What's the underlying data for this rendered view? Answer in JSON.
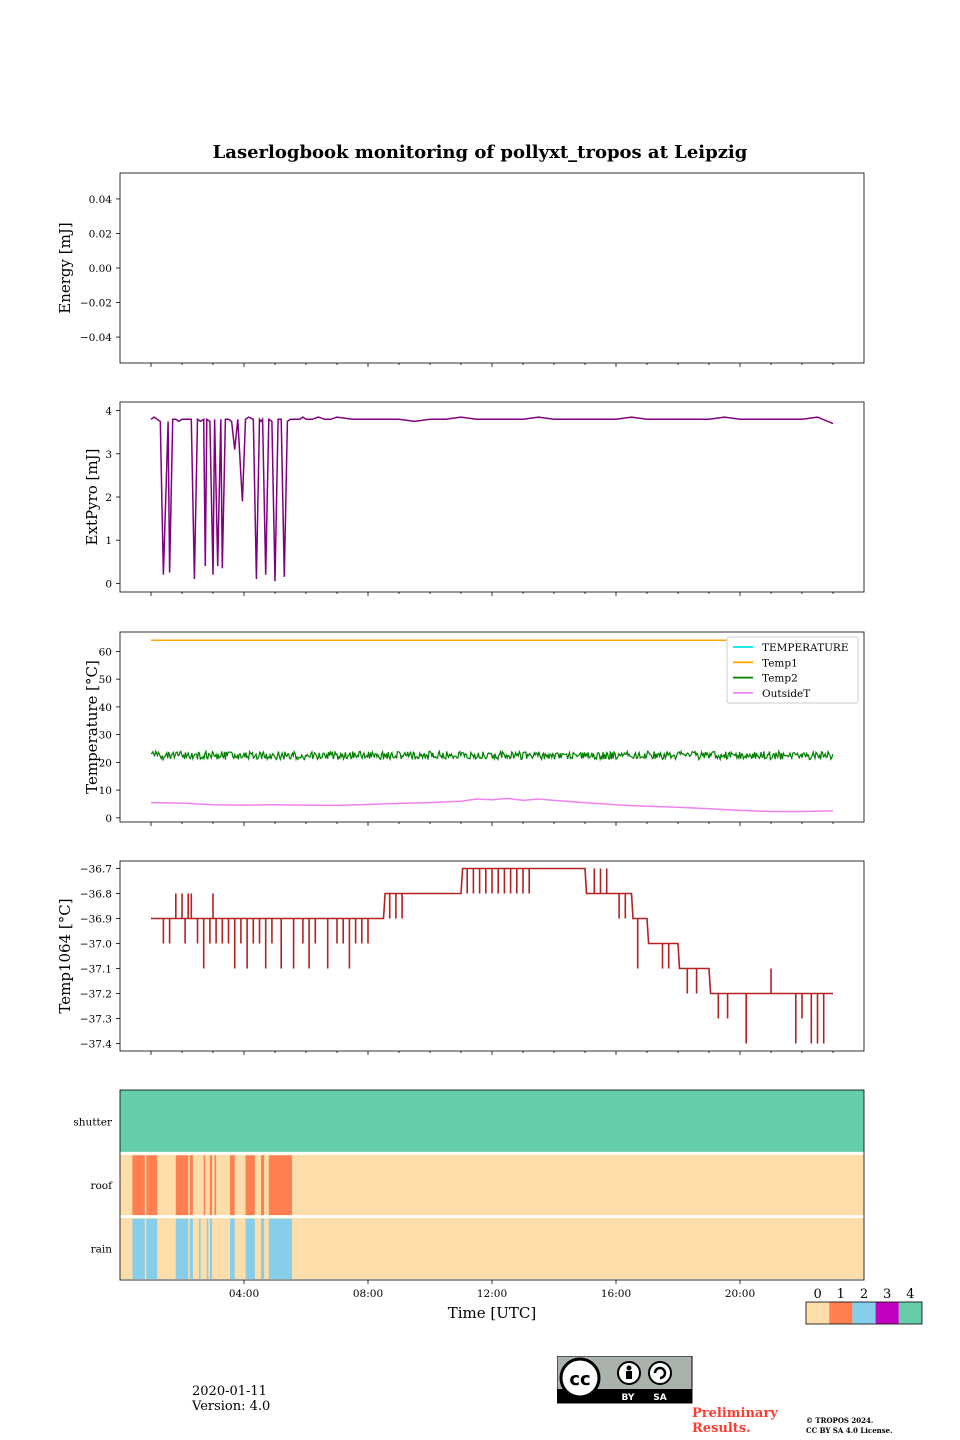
{
  "title": "Laserlogbook monitoring of pollyxt_tropos at Leipzig",
  "date": "2020-01-11",
  "version": "Version: 4.0",
  "preliminary": "Preliminary Results.",
  "copyright": "© TROPOS 2024.",
  "license": "CC BY SA 4.0 License.",
  "cc_badge": {
    "cc": "cc",
    "by": "BY",
    "sa": "SA"
  },
  "colors": {
    "energy": "#800080",
    "extpyro": "#800080",
    "temperature": "#00e5ee",
    "temp1": "#ffa500",
    "temp2": "#008000",
    "outside": "#ee82ee",
    "temp1064": "#b22222",
    "preliminary": "#ff3b30"
  },
  "chart_data": [
    {
      "id": "energy",
      "type": "line",
      "ylabel": "Energy [mJ]",
      "xlim": [
        0,
        24
      ],
      "ylim": [
        -0.055,
        0.055
      ],
      "yticks": [
        0.04,
        0.02,
        0.0,
        -0.02,
        -0.04
      ],
      "ytick_labels": [
        "0.04",
        "0.02",
        "0.00",
        "−0.02",
        "−0.04"
      ],
      "series": []
    },
    {
      "id": "extpyro",
      "type": "line",
      "ylabel": "ExtPyro [mJ]",
      "xlim": [
        0,
        24
      ],
      "ylim": [
        -0.2,
        4.2
      ],
      "yticks": [
        4,
        3,
        2,
        1,
        0
      ],
      "ytick_labels": [
        "4",
        "3",
        "2",
        "1",
        "0"
      ],
      "series": [
        {
          "name": "ExtPyro",
          "color": "#800080",
          "x": [
            1.0,
            1.1,
            1.2,
            1.3,
            1.35,
            1.4,
            1.55,
            1.6,
            1.7,
            1.8,
            1.9,
            2.0,
            2.1,
            2.3,
            2.4,
            2.5,
            2.6,
            2.7,
            2.75,
            2.8,
            2.9,
            3.0,
            3.05,
            3.15,
            3.25,
            3.3,
            3.4,
            3.5,
            3.6,
            3.7,
            3.8,
            3.9,
            3.95,
            4.05,
            4.15,
            4.3,
            4.4,
            4.5,
            4.55,
            4.6,
            4.7,
            4.8,
            4.9,
            5.0,
            5.1,
            5.2,
            5.3,
            5.4,
            5.5,
            5.6,
            5.8,
            5.9,
            6.0,
            6.2,
            6.4,
            6.6,
            6.8,
            7.0,
            7.5,
            8.0,
            8.5,
            9.0,
            9.5,
            10.0,
            10.5,
            11.0,
            11.5,
            12.0,
            12.5,
            13.0,
            13.5,
            14.0,
            14.5,
            15.0,
            15.5,
            16.0,
            16.5,
            17.0,
            17.5,
            18.0,
            18.5,
            19.0,
            19.5,
            20.0,
            20.5,
            21.0,
            21.5,
            22.0,
            22.5,
            23.0
          ],
          "y": [
            3.8,
            3.85,
            3.8,
            3.75,
            2.0,
            0.2,
            3.75,
            0.25,
            3.8,
            3.8,
            3.75,
            3.8,
            3.8,
            3.8,
            0.1,
            3.8,
            3.75,
            3.8,
            0.4,
            3.8,
            3.75,
            0.2,
            3.8,
            0.4,
            3.8,
            0.35,
            3.8,
            3.8,
            3.75,
            3.1,
            3.8,
            2.5,
            1.9,
            3.8,
            3.85,
            3.8,
            0.1,
            3.8,
            3.75,
            3.8,
            0.2,
            3.8,
            3.75,
            0.05,
            3.8,
            3.8,
            0.15,
            3.75,
            3.8,
            3.8,
            3.8,
            3.85,
            3.8,
            3.8,
            3.85,
            3.8,
            3.8,
            3.85,
            3.8,
            3.8,
            3.8,
            3.8,
            3.75,
            3.8,
            3.8,
            3.85,
            3.8,
            3.8,
            3.8,
            3.8,
            3.85,
            3.8,
            3.8,
            3.8,
            3.8,
            3.8,
            3.85,
            3.8,
            3.8,
            3.8,
            3.8,
            3.8,
            3.85,
            3.8,
            3.8,
            3.8,
            3.8,
            3.8,
            3.85,
            3.7
          ]
        }
      ]
    },
    {
      "id": "temperature",
      "type": "line",
      "ylabel": "Temperature [°C]",
      "xlim": [
        0,
        24
      ],
      "ylim": [
        -1.5,
        67
      ],
      "yticks": [
        60,
        50,
        40,
        30,
        20,
        10,
        0
      ],
      "ytick_labels": [
        "60",
        "50",
        "40",
        "30",
        "20",
        "10",
        "0"
      ],
      "legend": {
        "loc": "top-right",
        "entries": [
          "TEMPERATURE",
          "Temp1",
          "Temp2",
          "OutsideT"
        ]
      },
      "series": [
        {
          "name": "TEMPERATURE",
          "color": "#00e5ee",
          "x": [],
          "y": []
        },
        {
          "name": "Temp1",
          "color": "#ffa500",
          "x": [
            1.0,
            23.0
          ],
          "y": [
            64.0,
            64.0
          ]
        },
        {
          "name": "Temp2",
          "color": "#008000",
          "x": [
            1.0,
            23.0
          ],
          "y": [
            22.5,
            22.0
          ],
          "band": [
            21.0,
            24.0
          ]
        },
        {
          "name": "OutsideT",
          "color": "#ee82ee",
          "x": [
            1.0,
            2.0,
            3.0,
            4.0,
            5.0,
            6.0,
            7.0,
            8.0,
            9.0,
            10.0,
            11.0,
            11.5,
            12.0,
            12.5,
            13.0,
            13.5,
            14.0,
            15.0,
            16.0,
            17.0,
            18.0,
            19.0,
            20.0,
            21.0,
            22.0,
            23.0
          ],
          "y": [
            5.5,
            5.3,
            4.7,
            4.6,
            4.7,
            4.6,
            4.5,
            4.8,
            5.2,
            5.5,
            6.0,
            6.8,
            6.5,
            7.0,
            6.3,
            6.8,
            6.3,
            5.5,
            4.7,
            4.2,
            3.8,
            3.3,
            2.7,
            2.3,
            2.3,
            2.5
          ]
        }
      ]
    },
    {
      "id": "temp1064",
      "type": "line",
      "ylabel": "Temp1064 [°C]",
      "xlim": [
        0,
        24
      ],
      "ylim": [
        -37.43,
        -36.67
      ],
      "yticks": [
        -36.7,
        -36.8,
        -36.9,
        -37.0,
        -37.1,
        -37.2,
        -37.3,
        -37.4
      ],
      "ytick_labels": [
        "−36.7",
        "−36.8",
        "−36.9",
        "−37.0",
        "−37.1",
        "−37.2",
        "−37.3",
        "−37.4"
      ],
      "series": [
        {
          "name": "Temp1064",
          "color": "#b22222",
          "base_x": [
            1.0,
            8.5,
            8.55,
            11.0,
            11.05,
            15.0,
            15.05,
            16.5,
            16.55,
            17.0,
            17.05,
            18.0,
            18.05,
            19.0,
            19.05,
            21.5,
            21.55,
            23.0
          ],
          "base_y": [
            -36.9,
            -36.9,
            -36.8,
            -36.8,
            -36.7,
            -36.7,
            -36.8,
            -36.8,
            -36.9,
            -36.9,
            -37.0,
            -37.0,
            -37.1,
            -37.1,
            -37.2,
            -37.2,
            -37.2,
            -37.2
          ],
          "spike_x": [
            1.4,
            1.6,
            1.8,
            2.0,
            2.1,
            2.2,
            2.3,
            2.5,
            2.7,
            2.9,
            3.0,
            3.1,
            3.3,
            3.5,
            3.7,
            3.9,
            4.1,
            4.3,
            4.5,
            4.7,
            4.9,
            5.2,
            5.6,
            5.9,
            6.1,
            6.3,
            6.7,
            7.0,
            7.2,
            7.4,
            7.6,
            7.8,
            8.0,
            8.7,
            8.9,
            9.1,
            11.2,
            11.4,
            11.6,
            11.8,
            12.0,
            12.2,
            12.4,
            12.6,
            12.8,
            13.0,
            13.2,
            15.3,
            15.5,
            15.7,
            16.1,
            16.3,
            16.7,
            17.5,
            17.7,
            18.3,
            18.6,
            19.3,
            19.6,
            19.9,
            20.2,
            20.5,
            21.0,
            21.8,
            22.0,
            22.3,
            22.5,
            22.7
          ],
          "spike_y": [
            -37.0,
            -37.0,
            -36.8,
            -36.8,
            -37.0,
            -36.8,
            -36.8,
            -37.0,
            -37.1,
            -37.0,
            -36.8,
            -37.0,
            -37.0,
            -37.0,
            -37.1,
            -37.0,
            -37.1,
            -37.0,
            -37.0,
            -37.1,
            -37.0,
            -37.1,
            -37.1,
            -37.0,
            -37.1,
            -37.0,
            -37.1,
            -37.0,
            -37.0,
            -37.1,
            -37.0,
            -37.0,
            -37.0,
            -36.9,
            -36.9,
            -36.9,
            -36.8,
            -36.8,
            -36.8,
            -36.8,
            -36.8,
            -36.8,
            -36.8,
            -36.8,
            -36.8,
            -36.8,
            -36.8,
            -36.7,
            -36.7,
            -36.7,
            -36.9,
            -36.9,
            -37.1,
            -37.1,
            -37.1,
            -37.2,
            -37.2,
            -37.3,
            -37.3,
            -37.2,
            -37.4,
            -37.2,
            -37.1,
            -37.4,
            -37.3,
            -37.4,
            -37.4,
            -37.4
          ]
        }
      ]
    },
    {
      "id": "status",
      "type": "heatmap",
      "rows": [
        "shutter",
        "roof",
        "rain"
      ],
      "xlim": [
        0,
        24
      ],
      "xticks": [
        4,
        8,
        12,
        16,
        20
      ],
      "xtick_labels": [
        "04:00",
        "08:00",
        "12:00",
        "16:00",
        "20:00"
      ],
      "xlabel": "Time [UTC]",
      "background_values": {
        "shutter": 4,
        "roof": 0,
        "rain": 0
      },
      "roof_on_intervals": [
        [
          0.4,
          0.8
        ],
        [
          0.85,
          1.2
        ],
        [
          1.8,
          2.2
        ],
        [
          2.25,
          2.35
        ],
        [
          2.7,
          2.75
        ],
        [
          2.9,
          2.97
        ],
        [
          3.05,
          3.1
        ],
        [
          3.55,
          3.7
        ],
        [
          4.05,
          4.35
        ],
        [
          4.55,
          4.65
        ],
        [
          4.8,
          5.55
        ]
      ],
      "rain_on_intervals": [
        [
          0.4,
          0.8
        ],
        [
          0.85,
          1.2
        ],
        [
          1.8,
          2.2
        ],
        [
          2.25,
          2.35
        ],
        [
          2.55,
          2.6
        ],
        [
          2.8,
          2.85
        ],
        [
          2.9,
          2.97
        ],
        [
          3.55,
          3.7
        ],
        [
          4.05,
          4.35
        ],
        [
          4.55,
          4.65
        ],
        [
          4.8,
          5.55
        ]
      ],
      "colorbar": {
        "ticks": [
          "0",
          "1",
          "2",
          "3",
          "4"
        ],
        "colors": [
          "#fddeab",
          "#ff7f50",
          "#87ceeb",
          "#c000c0",
          "#66cdaa"
        ]
      }
    }
  ]
}
